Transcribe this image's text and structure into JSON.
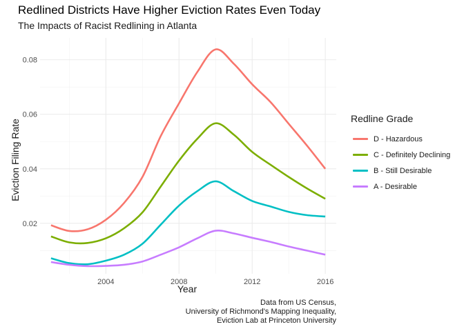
{
  "chart_data": {
    "type": "line",
    "title": "Redlined Districts Have Higher Eviction Rates Even Today",
    "subtitle": "The Impacts of Racist Redlining in Atlanta",
    "xlabel": "Year",
    "ylabel": "Eviction Filing Rate",
    "caption": [
      "Data from US Census,",
      "University of Richmond's Mapping Inequality,",
      "Eviction Lab at Princeton University"
    ],
    "legend_title": "Redline Grade",
    "legend_position": "right",
    "grid": true,
    "xlim": [
      2000.4,
      2016.6
    ],
    "ylim": [
      0.0015,
      0.088
    ],
    "x_ticks": [
      2004,
      2008,
      2012,
      2016
    ],
    "x_tick_labels": [
      "2004",
      "2008",
      "2012",
      "2016"
    ],
    "y_ticks": [
      0.02,
      0.04,
      0.06,
      0.08
    ],
    "y_tick_labels": [
      "0.02",
      "0.04",
      "0.06",
      "0.08"
    ],
    "x": [
      2001,
      2002,
      2003,
      2004,
      2005,
      2006,
      2007,
      2008,
      2009,
      2010,
      2011,
      2012,
      2013,
      2014,
      2015,
      2016
    ],
    "series": [
      {
        "name": "D - Hazardous",
        "color": "#F8766D",
        "values": [
          0.0193,
          0.0172,
          0.0178,
          0.0213,
          0.0275,
          0.037,
          0.052,
          0.064,
          0.0755,
          0.0838,
          0.0785,
          0.071,
          0.0645,
          0.0565,
          0.0485,
          0.04
        ]
      },
      {
        "name": "C - Definitely Declining",
        "color": "#7CAE00",
        "values": [
          0.0152,
          0.013,
          0.0128,
          0.0145,
          0.0182,
          0.024,
          0.0335,
          0.043,
          0.051,
          0.0567,
          0.0525,
          0.0462,
          0.0415,
          0.037,
          0.0328,
          0.029
        ]
      },
      {
        "name": "B - Still Desirable",
        "color": "#00BFC4",
        "values": [
          0.0072,
          0.0054,
          0.005,
          0.0063,
          0.0085,
          0.0125,
          0.0195,
          0.0265,
          0.0318,
          0.0354,
          0.0318,
          0.0282,
          0.0262,
          0.0242,
          0.023,
          0.0225
        ]
      },
      {
        "name": "A - Desirable",
        "color": "#C77CFF",
        "values": [
          0.0058,
          0.0048,
          0.0043,
          0.0044,
          0.0048,
          0.006,
          0.0085,
          0.0112,
          0.0145,
          0.0173,
          0.0163,
          0.0147,
          0.0132,
          0.0115,
          0.01,
          0.0085
        ]
      }
    ]
  }
}
